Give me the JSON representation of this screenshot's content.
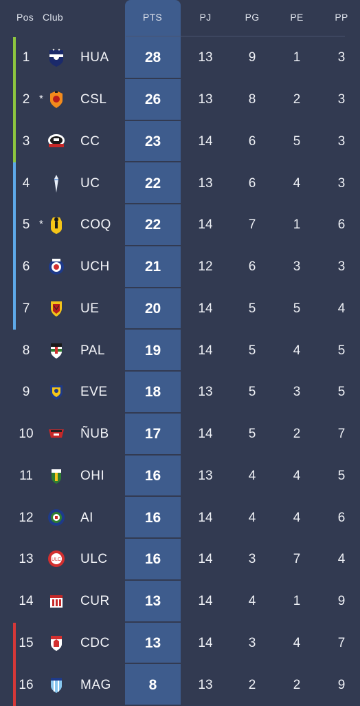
{
  "header": {
    "pos": "Pos",
    "club": "Club",
    "pts": "PTS",
    "pj": "PJ",
    "pg": "PG",
    "pe": "PE",
    "pp": "PP"
  },
  "colors": {
    "background": "#323a51",
    "pts_column": "#3e5c8d",
    "zone_green": "#8dc63f",
    "zone_blue": "#5ea9e8",
    "zone_red": "#d63838"
  },
  "rows": [
    {
      "pos": "1",
      "star": "",
      "abbr": "HUA",
      "pts": "28",
      "pj": "13",
      "pg": "9",
      "pe": "1",
      "pp": "3",
      "zone": "green",
      "crest": "huachipato-crest-icon"
    },
    {
      "pos": "2",
      "star": "*",
      "abbr": "CSL",
      "pts": "26",
      "pj": "13",
      "pg": "8",
      "pe": "2",
      "pp": "3",
      "zone": "green",
      "crest": "cobreloa-crest-icon"
    },
    {
      "pos": "3",
      "star": "",
      "abbr": "CC",
      "pts": "23",
      "pj": "14",
      "pg": "6",
      "pe": "5",
      "pp": "3",
      "zone": "green",
      "crest": "colo-colo-crest-icon"
    },
    {
      "pos": "4",
      "star": "",
      "abbr": "UC",
      "pts": "22",
      "pj": "13",
      "pg": "6",
      "pe": "4",
      "pp": "3",
      "zone": "blue",
      "crest": "universidad-catolica-crest-icon"
    },
    {
      "pos": "5",
      "star": "*",
      "abbr": "COQ",
      "pts": "22",
      "pj": "14",
      "pg": "7",
      "pe": "1",
      "pp": "6",
      "zone": "blue",
      "crest": "coquimbo-crest-icon"
    },
    {
      "pos": "6",
      "star": "",
      "abbr": "UCH",
      "pts": "21",
      "pj": "12",
      "pg": "6",
      "pe": "3",
      "pp": "3",
      "zone": "blue",
      "crest": "universidad-de-chile-crest-icon"
    },
    {
      "pos": "7",
      "star": "",
      "abbr": "UE",
      "pts": "20",
      "pj": "14",
      "pg": "5",
      "pe": "5",
      "pp": "4",
      "zone": "blue",
      "crest": "union-espanola-crest-icon"
    },
    {
      "pos": "8",
      "star": "",
      "abbr": "PAL",
      "pts": "19",
      "pj": "14",
      "pg": "5",
      "pe": "4",
      "pp": "5",
      "zone": "",
      "crest": "palestino-crest-icon"
    },
    {
      "pos": "9",
      "star": "",
      "abbr": "EVE",
      "pts": "18",
      "pj": "13",
      "pg": "5",
      "pe": "3",
      "pp": "5",
      "zone": "",
      "crest": "everton-crest-icon"
    },
    {
      "pos": "10",
      "star": "",
      "abbr": "ÑUB",
      "pts": "17",
      "pj": "14",
      "pg": "5",
      "pe": "2",
      "pp": "7",
      "zone": "",
      "crest": "nublense-crest-icon"
    },
    {
      "pos": "11",
      "star": "",
      "abbr": "OHI",
      "pts": "16",
      "pj": "13",
      "pg": "4",
      "pe": "4",
      "pp": "5",
      "zone": "",
      "crest": "ohiggins-crest-icon"
    },
    {
      "pos": "12",
      "star": "",
      "abbr": "AI",
      "pts": "16",
      "pj": "14",
      "pg": "4",
      "pe": "4",
      "pp": "6",
      "zone": "",
      "crest": "audax-italiano-crest-icon"
    },
    {
      "pos": "13",
      "star": "",
      "abbr": "ULC",
      "pts": "16",
      "pj": "14",
      "pg": "3",
      "pe": "7",
      "pp": "4",
      "zone": "",
      "crest": "union-la-calera-crest-icon"
    },
    {
      "pos": "14",
      "star": "",
      "abbr": "CUR",
      "pts": "13",
      "pj": "14",
      "pg": "4",
      "pe": "1",
      "pp": "9",
      "zone": "",
      "crest": "curico-crest-icon"
    },
    {
      "pos": "15",
      "star": "",
      "abbr": "CDC",
      "pts": "13",
      "pj": "14",
      "pg": "3",
      "pe": "4",
      "pp": "7",
      "zone": "red",
      "crest": "deportes-copiapo-crest-icon"
    },
    {
      "pos": "16",
      "star": "",
      "abbr": "MAG",
      "pts": "8",
      "pj": "13",
      "pg": "2",
      "pe": "2",
      "pp": "9",
      "zone": "red",
      "crest": "magallanes-crest-icon"
    }
  ]
}
